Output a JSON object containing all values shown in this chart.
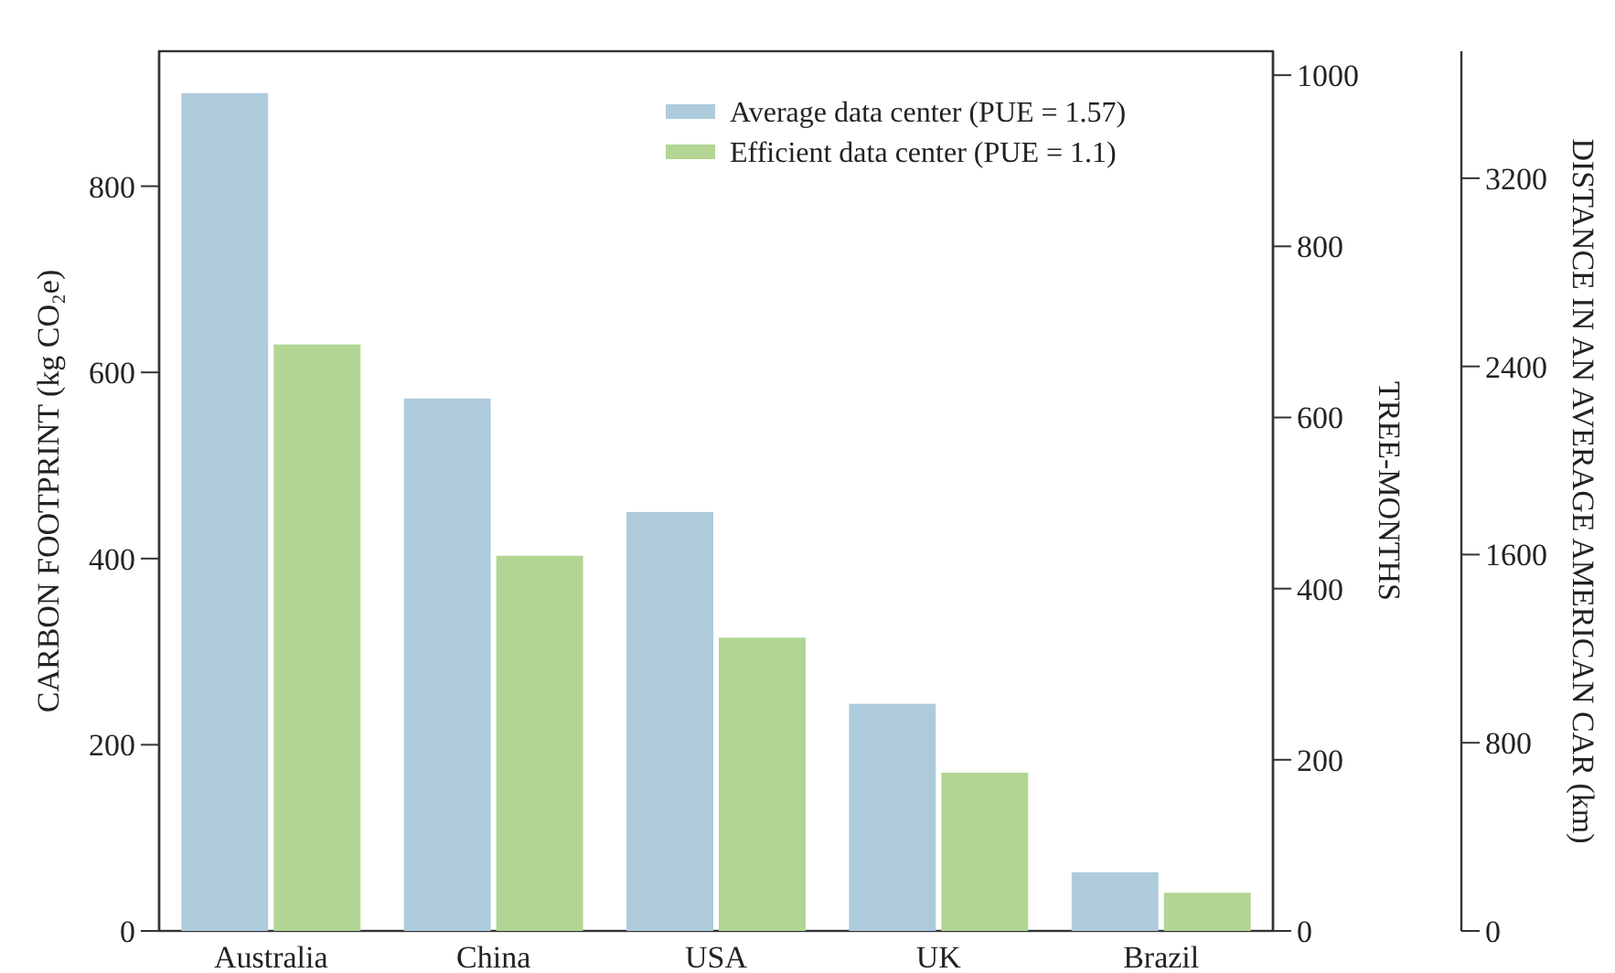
{
  "chart_data": {
    "type": "bar",
    "categories": [
      "Australia",
      "China",
      "USA",
      "UK",
      "Brazil"
    ],
    "series": [
      {
        "name": "Average data center (PUE = 1.57)",
        "color": "#aecbdc",
        "values": [
          900,
          572,
          450,
          244,
          63
        ]
      },
      {
        "name": "Efficient data center (PUE = 1.1)",
        "color": "#b2d593",
        "values": [
          630,
          403,
          315,
          170,
          41
        ]
      }
    ],
    "ylabel": "CARBON FOOTPRINT (kg CO₂e)",
    "ylim": [
      0,
      945
    ],
    "yticks": [
      0,
      200,
      400,
      600,
      800
    ],
    "y2label": "TREE-MONTHS",
    "y2lim": [
      0,
      1028
    ],
    "y2ticks": [
      0,
      200,
      400,
      600,
      800,
      1000
    ],
    "y3label": "DISTANCE IN AN AVERAGE AMERICAN CAR (km)",
    "y3lim": [
      0,
      3740
    ],
    "y3ticks": [
      0,
      800,
      1600,
      2400,
      3200
    ],
    "legend": "top right"
  }
}
